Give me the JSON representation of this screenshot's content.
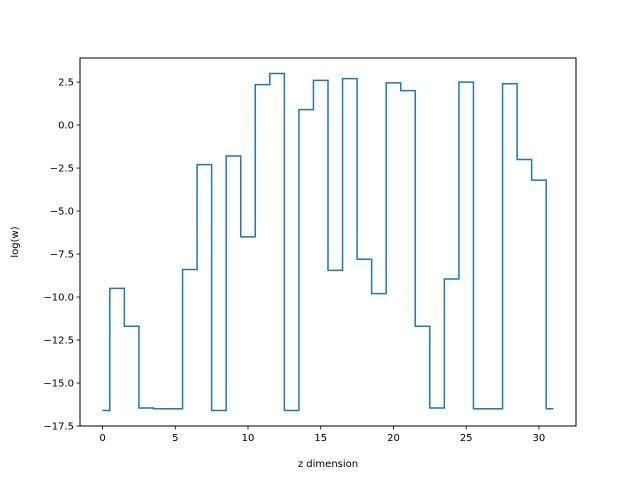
{
  "chart_data": {
    "type": "line",
    "step": "mid",
    "title": "",
    "xlabel": "z dimension",
    "ylabel": "log(w)",
    "xlim": [
      -1.55,
      32.55
    ],
    "ylim": [
      -17.5,
      3.9
    ],
    "xticks": [
      0,
      5,
      10,
      15,
      20,
      25,
      30
    ],
    "xtick_labels": [
      "0",
      "5",
      "10",
      "15",
      "20",
      "25",
      "30"
    ],
    "yticks": [
      2.5,
      0.0,
      -2.5,
      -5.0,
      -7.5,
      -10.0,
      -12.5,
      -15.0,
      -17.5
    ],
    "ytick_labels": [
      "2.5",
      "0.0",
      "−2.5",
      "−5.0",
      "−7.5",
      "−10.0",
      "−12.5",
      "−15.0",
      "−17.5"
    ],
    "grid": false,
    "line_color": "#1f77b4",
    "series": [
      {
        "x": [
          0,
          1,
          2,
          3,
          4,
          5,
          6,
          7,
          8,
          9,
          10,
          11,
          12,
          13,
          14,
          15,
          16,
          17,
          18,
          19,
          20,
          21,
          22,
          23,
          24,
          25,
          26,
          27,
          28,
          29,
          30,
          31
        ],
        "values": [
          -16.6,
          -9.5,
          -11.7,
          -16.45,
          -16.5,
          -16.5,
          -8.4,
          -2.3,
          -16.6,
          -1.8,
          -6.5,
          2.35,
          3.0,
          -16.6,
          0.9,
          2.6,
          -8.45,
          2.7,
          -7.8,
          -9.8,
          2.45,
          2.0,
          -11.7,
          -16.45,
          -8.95,
          2.5,
          -16.5,
          -16.5,
          2.4,
          -2.0,
          -3.2,
          -16.5
        ]
      }
    ]
  }
}
